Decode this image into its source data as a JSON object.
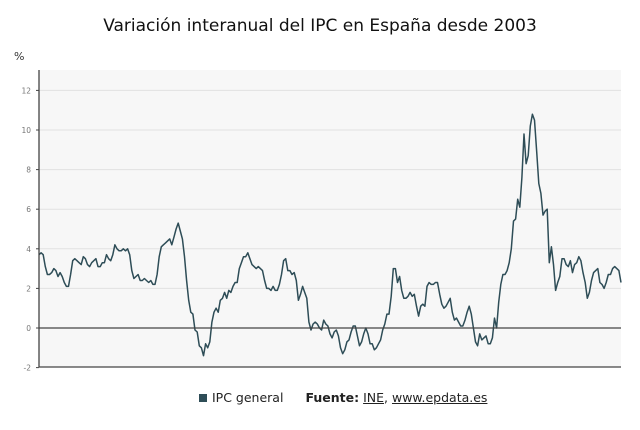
{
  "chart_data": {
    "type": "line",
    "title": "Variación interanual del IPC en España desde 2003",
    "ylabel": "%",
    "xlabel": "",
    "ylim": [
      -2,
      13
    ],
    "yticks": [
      -2,
      0,
      2,
      4,
      6,
      8,
      10,
      12
    ],
    "grid": true,
    "x_start": "2003-01",
    "x_frequency": "monthly",
    "series": [
      {
        "name": "IPC general",
        "color": "#2e4d57",
        "values": [
          3.7,
          3.8,
          3.7,
          3.1,
          2.7,
          2.7,
          2.8,
          3.0,
          2.9,
          2.6,
          2.8,
          2.6,
          2.3,
          2.1,
          2.1,
          2.7,
          3.4,
          3.5,
          3.4,
          3.3,
          3.2,
          3.6,
          3.5,
          3.2,
          3.1,
          3.3,
          3.4,
          3.5,
          3.1,
          3.1,
          3.3,
          3.3,
          3.7,
          3.5,
          3.4,
          3.7,
          4.2,
          4.0,
          3.9,
          3.9,
          4.0,
          3.9,
          4.0,
          3.7,
          2.9,
          2.5,
          2.6,
          2.7,
          2.4,
          2.4,
          2.5,
          2.4,
          2.3,
          2.4,
          2.2,
          2.2,
          2.7,
          3.6,
          4.1,
          4.2,
          4.3,
          4.4,
          4.5,
          4.2,
          4.6,
          5.0,
          5.3,
          4.9,
          4.5,
          3.6,
          2.4,
          1.4,
          0.8,
          0.7,
          -0.1,
          -0.2,
          -0.9,
          -1.0,
          -1.4,
          -0.8,
          -1.0,
          -0.7,
          0.3,
          0.8,
          1.0,
          0.8,
          1.4,
          1.5,
          1.8,
          1.5,
          1.9,
          1.8,
          2.1,
          2.3,
          2.3,
          3.0,
          3.3,
          3.6,
          3.6,
          3.8,
          3.5,
          3.2,
          3.1,
          3.0,
          3.1,
          3.0,
          2.9,
          2.4,
          2.0,
          2.0,
          1.9,
          2.1,
          1.9,
          1.9,
          2.2,
          2.7,
          3.4,
          3.5,
          2.9,
          2.9,
          2.7,
          2.8,
          2.4,
          1.4,
          1.7,
          2.1,
          1.8,
          1.5,
          0.3,
          -0.1,
          0.2,
          0.3,
          0.2,
          0.0,
          -0.1,
          0.4,
          0.2,
          0.1,
          -0.3,
          -0.5,
          -0.2,
          -0.1,
          -0.4,
          -1.0,
          -1.3,
          -1.1,
          -0.7,
          -0.6,
          -0.2,
          0.1,
          0.1,
          -0.4,
          -0.9,
          -0.7,
          -0.3,
          0.0,
          -0.3,
          -0.8,
          -0.8,
          -1.1,
          -1.0,
          -0.8,
          -0.6,
          -0.1,
          0.2,
          0.7,
          0.7,
          1.6,
          3.0,
          3.0,
          2.3,
          2.6,
          1.9,
          1.5,
          1.5,
          1.6,
          1.8,
          1.6,
          1.7,
          1.1,
          0.6,
          1.1,
          1.2,
          1.1,
          2.1,
          2.3,
          2.2,
          2.2,
          2.3,
          2.3,
          1.7,
          1.2,
          1.0,
          1.1,
          1.3,
          1.5,
          0.8,
          0.4,
          0.5,
          0.3,
          0.1,
          0.1,
          0.4,
          0.8,
          1.1,
          0.7,
          0.0,
          -0.7,
          -0.9,
          -0.3,
          -0.6,
          -0.5,
          -0.4,
          -0.8,
          -0.8,
          -0.5,
          0.5,
          0.0,
          1.3,
          2.2,
          2.7,
          2.7,
          2.9,
          3.3,
          4.0,
          5.4,
          5.5,
          6.5,
          6.1,
          7.6,
          9.8,
          8.3,
          8.7,
          10.2,
          10.8,
          10.5,
          8.9,
          7.3,
          6.8,
          5.7,
          5.9,
          6.0,
          3.3,
          4.1,
          3.2,
          1.9,
          2.3,
          2.6,
          3.5,
          3.5,
          3.2,
          3.1,
          3.4,
          2.8,
          3.2,
          3.3,
          3.6,
          3.4,
          2.8,
          2.3,
          1.5,
          1.8,
          2.4,
          2.8,
          2.9,
          3.0,
          2.3,
          2.2,
          2.0,
          2.3,
          2.7,
          2.7,
          3.0,
          3.1,
          3.0,
          2.9,
          2.3
        ]
      }
    ],
    "legend_position": "bottom"
  },
  "legend": {
    "series_label": "IPC general",
    "source_label": "Fuente:",
    "source_ine": "INE",
    "separator": ",",
    "source_site": "www.epdata.es"
  },
  "colors": {
    "line": "#2e4d57",
    "plot_background": "#f7f7f7",
    "grid": "#e2e2e2",
    "axis": "#444444"
  }
}
